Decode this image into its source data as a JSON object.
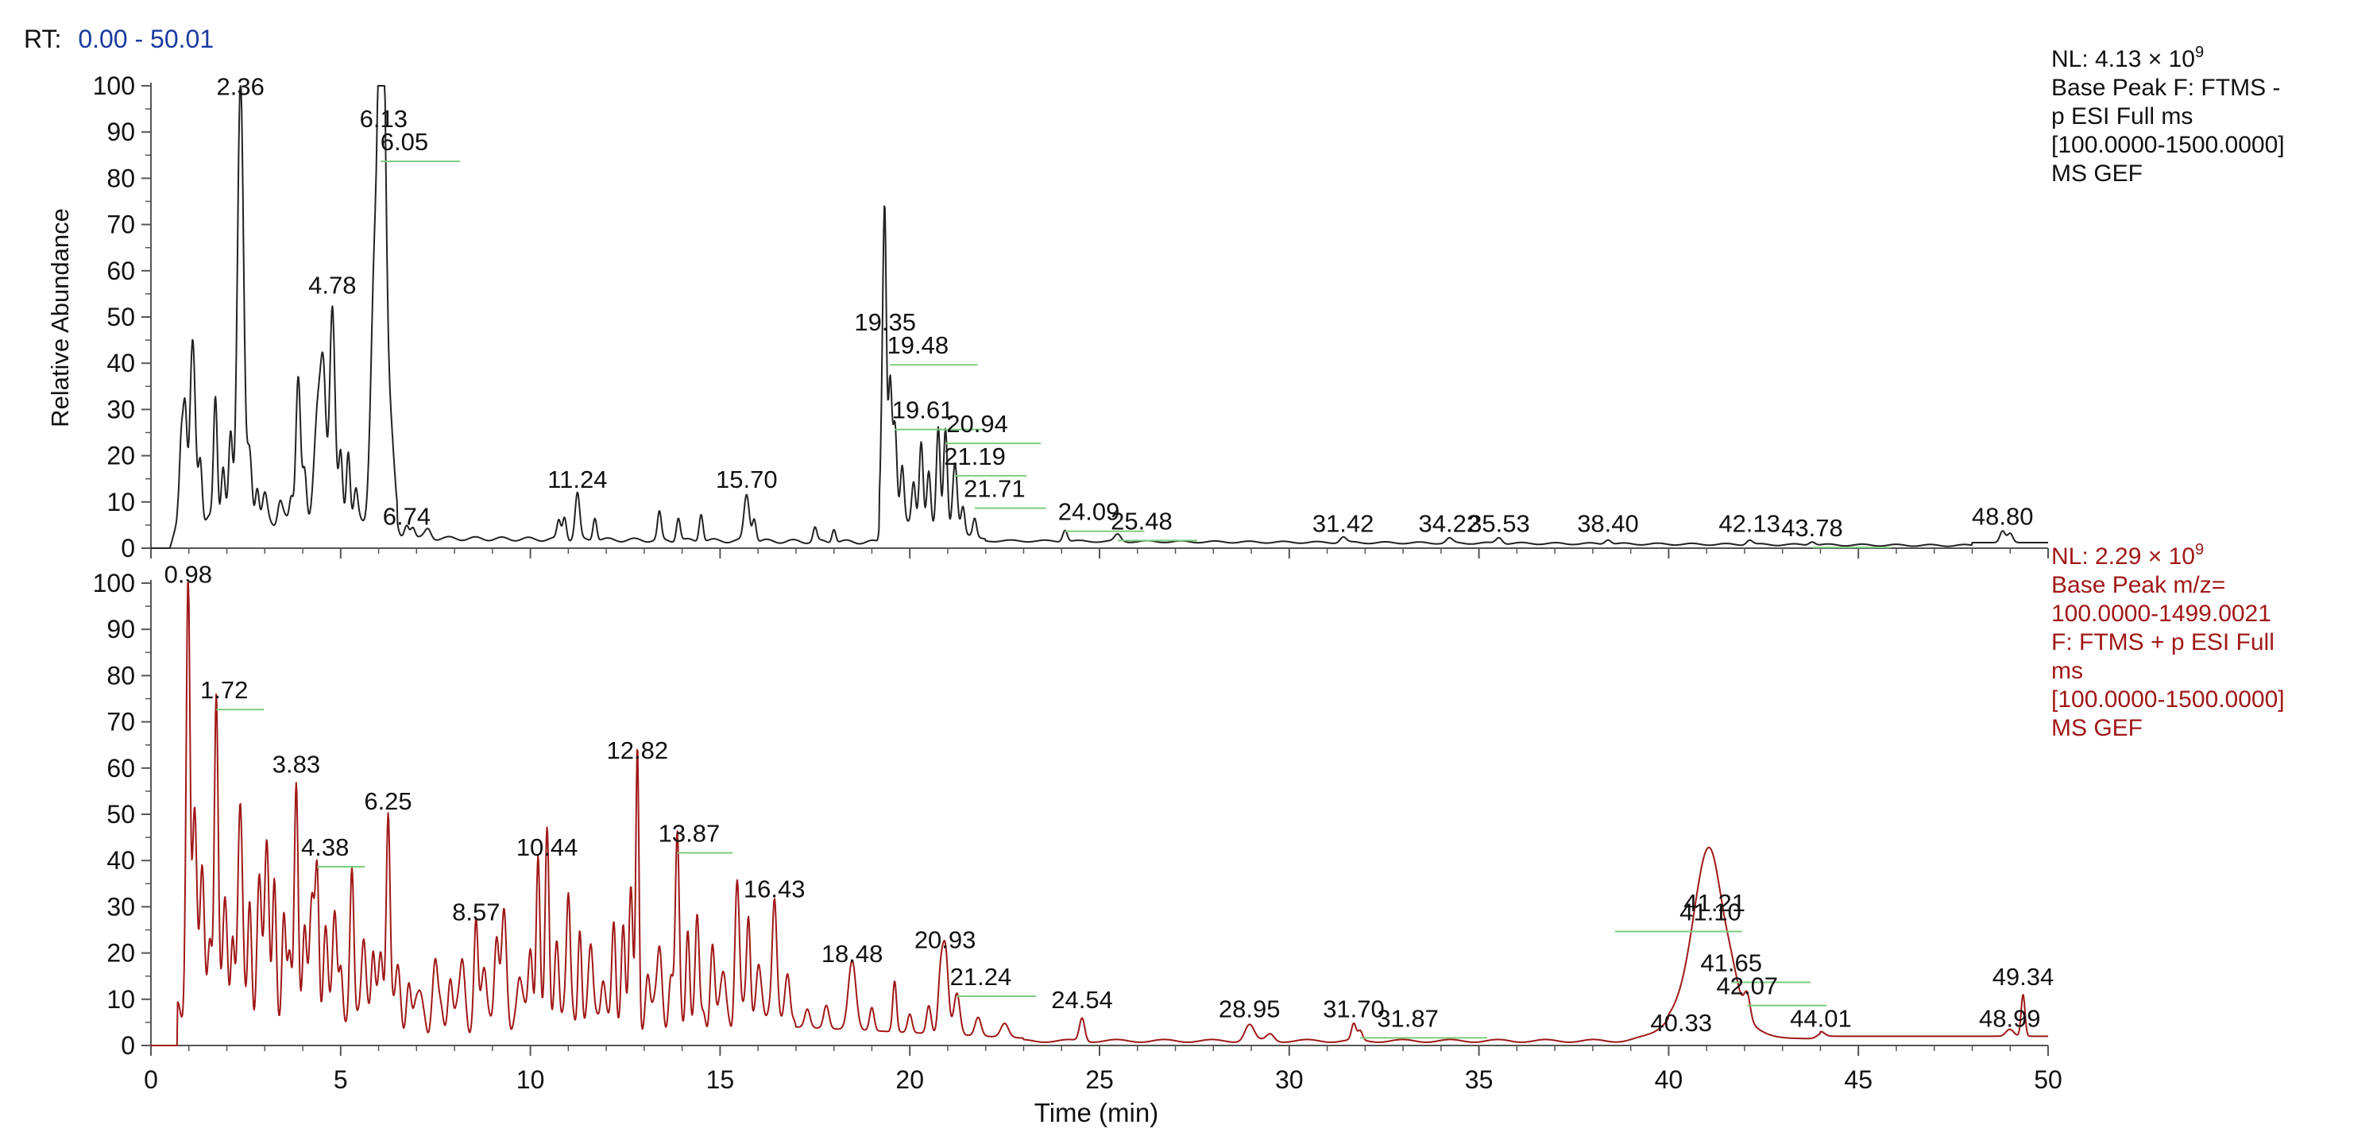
{
  "rt_range": {
    "prefix": "RT:",
    "value": "0.00 - 50.01"
  },
  "colors": {
    "trace_top": "#222222",
    "trace_bottom": "#a01818",
    "marker": "#7ccd7c",
    "rt_value": "#1a3aa0",
    "text": "#111111"
  },
  "chart_data": [
    {
      "type": "line",
      "name": "top-trace",
      "ylabel": "Relative Abundance",
      "xlabel": "",
      "xlim": [
        0,
        50
      ],
      "ylim": [
        0,
        100
      ],
      "yticks": [
        "0",
        "10",
        "20",
        "30",
        "40",
        "50",
        "60",
        "70",
        "80",
        "90",
        "100"
      ],
      "nl_prefix": "NL: 4.13 × 10",
      "nl_exp": "9",
      "info": [
        "Base Peak F: FTMS -",
        "p ESI Full ms",
        "[100.0000-1500.0000]",
        "MS GEF"
      ],
      "peaks": [
        {
          "x": 0.8,
          "y": 18,
          "w": 0.05
        },
        {
          "x": 0.9,
          "y": 24,
          "w": 0.05
        },
        {
          "x": 1.1,
          "y": 38,
          "w": 0.07
        },
        {
          "x": 1.3,
          "y": 14,
          "w": 0.05
        },
        {
          "x": 1.7,
          "y": 27,
          "w": 0.05
        },
        {
          "x": 1.9,
          "y": 12,
          "w": 0.05
        },
        {
          "x": 2.1,
          "y": 18,
          "w": 0.05
        },
        {
          "x": 2.36,
          "y": 96,
          "w": 0.08
        },
        {
          "x": 2.6,
          "y": 14,
          "w": 0.06
        },
        {
          "x": 2.8,
          "y": 8,
          "w": 0.05
        },
        {
          "x": 3.0,
          "y": 5,
          "w": 0.06
        },
        {
          "x": 3.4,
          "y": 4,
          "w": 0.06
        },
        {
          "x": 3.7,
          "y": 6,
          "w": 0.05
        },
        {
          "x": 3.88,
          "y": 31,
          "w": 0.06
        },
        {
          "x": 4.05,
          "y": 10,
          "w": 0.05
        },
        {
          "x": 4.4,
          "y": 24,
          "w": 0.1
        },
        {
          "x": 4.55,
          "y": 26,
          "w": 0.07
        },
        {
          "x": 4.78,
          "y": 47,
          "w": 0.07
        },
        {
          "x": 5.0,
          "y": 14,
          "w": 0.05
        },
        {
          "x": 5.2,
          "y": 16,
          "w": 0.05
        },
        {
          "x": 5.4,
          "y": 6,
          "w": 0.05
        },
        {
          "x": 5.9,
          "y": 55,
          "w": 0.1
        },
        {
          "x": 6.05,
          "y": 70,
          "w": 0.07
        },
        {
          "x": 6.13,
          "y": 76,
          "w": 0.08
        },
        {
          "x": 6.3,
          "y": 20,
          "w": 0.1
        },
        {
          "x": 6.74,
          "y": 3,
          "w": 0.06
        },
        {
          "x": 6.9,
          "y": 2.5,
          "w": 0.06
        },
        {
          "x": 7.3,
          "y": 2,
          "w": 0.08
        },
        {
          "x": 10.75,
          "y": 4,
          "w": 0.05
        },
        {
          "x": 10.9,
          "y": 5,
          "w": 0.05
        },
        {
          "x": 11.24,
          "y": 10,
          "w": 0.06
        },
        {
          "x": 11.7,
          "y": 5,
          "w": 0.05
        },
        {
          "x": 13.4,
          "y": 6,
          "w": 0.05
        },
        {
          "x": 13.9,
          "y": 5,
          "w": 0.05
        },
        {
          "x": 14.5,
          "y": 6,
          "w": 0.05
        },
        {
          "x": 15.7,
          "y": 10,
          "w": 0.07
        },
        {
          "x": 15.9,
          "y": 5,
          "w": 0.05
        },
        {
          "x": 17.5,
          "y": 3,
          "w": 0.05
        },
        {
          "x": 18.0,
          "y": 3,
          "w": 0.05
        },
        {
          "x": 19.3,
          "y": 36,
          "w": 0.05
        },
        {
          "x": 19.35,
          "y": 42,
          "w": 0.04
        },
        {
          "x": 19.48,
          "y": 30,
          "w": 0.05
        },
        {
          "x": 19.61,
          "y": 20,
          "w": 0.05
        },
        {
          "x": 19.8,
          "y": 12,
          "w": 0.05
        },
        {
          "x": 20.1,
          "y": 9,
          "w": 0.05
        },
        {
          "x": 20.3,
          "y": 18,
          "w": 0.05
        },
        {
          "x": 20.5,
          "y": 12,
          "w": 0.05
        },
        {
          "x": 20.75,
          "y": 22,
          "w": 0.05
        },
        {
          "x": 20.94,
          "y": 22,
          "w": 0.05
        },
        {
          "x": 21.19,
          "y": 15,
          "w": 0.06
        },
        {
          "x": 21.4,
          "y": 6,
          "w": 0.05
        },
        {
          "x": 21.71,
          "y": 4,
          "w": 0.05
        },
        {
          "x": 24.09,
          "y": 2.5,
          "w": 0.06
        },
        {
          "x": 25.48,
          "y": 1.5,
          "w": 0.08
        },
        {
          "x": 31.42,
          "y": 1.2,
          "w": 0.08
        },
        {
          "x": 34.22,
          "y": 1,
          "w": 0.08
        },
        {
          "x": 35.53,
          "y": 1.3,
          "w": 0.08
        },
        {
          "x": 38.4,
          "y": 1,
          "w": 0.08
        },
        {
          "x": 42.13,
          "y": 1,
          "w": 0.08
        },
        {
          "x": 43.78,
          "y": 0.8,
          "w": 0.08
        },
        {
          "x": 48.8,
          "y": 2.5,
          "w": 0.07
        },
        {
          "x": 49.0,
          "y": 2,
          "w": 0.07
        }
      ],
      "labels": [
        {
          "text": "2.36",
          "x": 2.36,
          "y": 96
        },
        {
          "text": "6.13",
          "x": 6.13,
          "y": 89
        },
        {
          "text": "6.05",
          "x": 6.05,
          "y": 84,
          "marker": true,
          "dx": 60
        },
        {
          "text": "4.78",
          "x": 4.78,
          "y": 53
        },
        {
          "text": "6.74",
          "x": 6.74,
          "y": 3
        },
        {
          "text": "11.24",
          "x": 11.24,
          "y": 11
        },
        {
          "text": "15.70",
          "x": 15.7,
          "y": 11
        },
        {
          "text": "19.35",
          "x": 19.35,
          "y": 45
        },
        {
          "text": "19.48",
          "x": 19.48,
          "y": 40,
          "marker": true,
          "dx": 70
        },
        {
          "text": "19.61",
          "x": 19.61,
          "y": 26,
          "marker": true,
          "dx": 70
        },
        {
          "text": "20.94",
          "x": 20.94,
          "y": 23,
          "marker": true,
          "dx": 80
        },
        {
          "text": "21.19",
          "x": 21.19,
          "y": 16,
          "marker": true,
          "dx": 50
        },
        {
          "text": "21.71",
          "x": 21.71,
          "y": 9,
          "marker": true,
          "dx": 50
        },
        {
          "text": "24.09",
          "x": 24.09,
          "y": 4,
          "marker": true,
          "dx": 60
        },
        {
          "text": "25.48",
          "x": 25.48,
          "y": 2,
          "marker": true,
          "dx": 60
        },
        {
          "text": "31.42",
          "x": 31.42,
          "y": 1.5
        },
        {
          "text": "34.22",
          "x": 34.22,
          "y": 1.5
        },
        {
          "text": "35.53",
          "x": 35.53,
          "y": 1.5
        },
        {
          "text": "38.40",
          "x": 38.4,
          "y": 1.5
        },
        {
          "text": "42.13",
          "x": 42.13,
          "y": 1.5
        },
        {
          "text": "43.78",
          "x": 43.78,
          "y": 0.5,
          "marker": true,
          "dx": 0
        },
        {
          "text": "48.80",
          "x": 48.8,
          "y": 3
        }
      ]
    },
    {
      "type": "line",
      "name": "bottom-trace",
      "ylabel": "",
      "xlabel": "Time (min)",
      "xlim": [
        0,
        50
      ],
      "ylim": [
        0,
        100
      ],
      "xticks": [
        "0",
        "5",
        "10",
        "15",
        "20",
        "25",
        "30",
        "35",
        "40",
        "45",
        "50"
      ],
      "yticks": [
        "0",
        "10",
        "20",
        "30",
        "40",
        "50",
        "60",
        "70",
        "80",
        "90",
        "100"
      ],
      "nl_prefix": "NL: 2.29 × 10",
      "nl_exp": "9",
      "info": [
        "Base Peak m/z=",
        "100.0000-1499.0021",
        "F: FTMS + p ESI Full",
        "ms",
        "[100.0000-1500.0000]",
        "MS GEF"
      ],
      "peaks": [
        {
          "x": 0.98,
          "y": 98,
          "w": 0.05
        },
        {
          "x": 1.15,
          "y": 44,
          "w": 0.06
        },
        {
          "x": 1.35,
          "y": 30,
          "w": 0.06
        },
        {
          "x": 1.55,
          "y": 18,
          "w": 0.06
        },
        {
          "x": 1.72,
          "y": 70,
          "w": 0.05
        },
        {
          "x": 1.95,
          "y": 25,
          "w": 0.06
        },
        {
          "x": 2.15,
          "y": 20,
          "w": 0.05
        },
        {
          "x": 2.35,
          "y": 46,
          "w": 0.06
        },
        {
          "x": 2.6,
          "y": 26,
          "w": 0.05
        },
        {
          "x": 2.85,
          "y": 30,
          "w": 0.06
        },
        {
          "x": 3.05,
          "y": 36,
          "w": 0.06
        },
        {
          "x": 3.25,
          "y": 32,
          "w": 0.05
        },
        {
          "x": 3.5,
          "y": 20,
          "w": 0.05
        },
        {
          "x": 3.65,
          "y": 14,
          "w": 0.05
        },
        {
          "x": 3.83,
          "y": 54,
          "w": 0.05
        },
        {
          "x": 4.05,
          "y": 20,
          "w": 0.05
        },
        {
          "x": 4.25,
          "y": 26,
          "w": 0.06
        },
        {
          "x": 4.38,
          "y": 32,
          "w": 0.05
        },
        {
          "x": 4.6,
          "y": 18,
          "w": 0.06
        },
        {
          "x": 4.85,
          "y": 22,
          "w": 0.06
        },
        {
          "x": 5.0,
          "y": 12,
          "w": 0.05
        },
        {
          "x": 5.3,
          "y": 30,
          "w": 0.05
        },
        {
          "x": 5.6,
          "y": 20,
          "w": 0.06
        },
        {
          "x": 5.85,
          "y": 12,
          "w": 0.05
        },
        {
          "x": 6.05,
          "y": 16,
          "w": 0.06
        },
        {
          "x": 6.25,
          "y": 46,
          "w": 0.05
        },
        {
          "x": 6.5,
          "y": 10,
          "w": 0.06
        },
        {
          "x": 6.8,
          "y": 8,
          "w": 0.06
        },
        {
          "x": 7.1,
          "y": 6,
          "w": 0.06
        },
        {
          "x": 7.5,
          "y": 12,
          "w": 0.06
        },
        {
          "x": 7.9,
          "y": 10,
          "w": 0.06
        },
        {
          "x": 8.2,
          "y": 12,
          "w": 0.06
        },
        {
          "x": 8.57,
          "y": 22,
          "w": 0.05
        },
        {
          "x": 8.8,
          "y": 10,
          "w": 0.06
        },
        {
          "x": 9.1,
          "y": 18,
          "w": 0.06
        },
        {
          "x": 9.3,
          "y": 22,
          "w": 0.06
        },
        {
          "x": 9.7,
          "y": 10,
          "w": 0.06
        },
        {
          "x": 10.0,
          "y": 14,
          "w": 0.06
        },
        {
          "x": 10.2,
          "y": 36,
          "w": 0.05
        },
        {
          "x": 10.44,
          "y": 38,
          "w": 0.05
        },
        {
          "x": 10.7,
          "y": 18,
          "w": 0.06
        },
        {
          "x": 11.0,
          "y": 26,
          "w": 0.05
        },
        {
          "x": 11.3,
          "y": 20,
          "w": 0.05
        },
        {
          "x": 11.6,
          "y": 14,
          "w": 0.06
        },
        {
          "x": 11.9,
          "y": 10,
          "w": 0.06
        },
        {
          "x": 12.2,
          "y": 18,
          "w": 0.05
        },
        {
          "x": 12.45,
          "y": 22,
          "w": 0.05
        },
        {
          "x": 12.65,
          "y": 26,
          "w": 0.05
        },
        {
          "x": 12.82,
          "y": 57,
          "w": 0.04
        },
        {
          "x": 13.1,
          "y": 10,
          "w": 0.06
        },
        {
          "x": 13.4,
          "y": 16,
          "w": 0.06
        },
        {
          "x": 13.7,
          "y": 8,
          "w": 0.06
        },
        {
          "x": 13.87,
          "y": 38,
          "w": 0.05
        },
        {
          "x": 14.15,
          "y": 20,
          "w": 0.05
        },
        {
          "x": 14.4,
          "y": 20,
          "w": 0.05
        },
        {
          "x": 14.8,
          "y": 16,
          "w": 0.06
        },
        {
          "x": 15.1,
          "y": 10,
          "w": 0.06
        },
        {
          "x": 15.45,
          "y": 28,
          "w": 0.06
        },
        {
          "x": 15.75,
          "y": 24,
          "w": 0.05
        },
        {
          "x": 16.0,
          "y": 12,
          "w": 0.06
        },
        {
          "x": 16.43,
          "y": 29,
          "w": 0.06
        },
        {
          "x": 16.8,
          "y": 8,
          "w": 0.06
        },
        {
          "x": 17.3,
          "y": 4,
          "w": 0.07
        },
        {
          "x": 17.8,
          "y": 5,
          "w": 0.07
        },
        {
          "x": 18.48,
          "y": 15,
          "w": 0.1
        },
        {
          "x": 19.0,
          "y": 5,
          "w": 0.06
        },
        {
          "x": 19.6,
          "y": 11,
          "w": 0.05
        },
        {
          "x": 20.0,
          "y": 4,
          "w": 0.06
        },
        {
          "x": 20.5,
          "y": 6,
          "w": 0.06
        },
        {
          "x": 20.8,
          "y": 10,
          "w": 0.06
        },
        {
          "x": 20.93,
          "y": 19,
          "w": 0.08
        },
        {
          "x": 21.24,
          "y": 9,
          "w": 0.08
        },
        {
          "x": 21.8,
          "y": 4,
          "w": 0.08
        },
        {
          "x": 22.5,
          "y": 3,
          "w": 0.1
        },
        {
          "x": 24.54,
          "y": 5,
          "w": 0.07
        },
        {
          "x": 28.95,
          "y": 3.5,
          "w": 0.12
        },
        {
          "x": 29.5,
          "y": 1.5,
          "w": 0.1
        },
        {
          "x": 31.7,
          "y": 3.5,
          "w": 0.06
        },
        {
          "x": 31.87,
          "y": 2,
          "w": 0.06
        },
        {
          "x": 40.9,
          "y": 18,
          "w": 0.3
        },
        {
          "x": 41.21,
          "y": 14,
          "w": 0.25
        },
        {
          "x": 41.65,
          "y": 6,
          "w": 0.2
        },
        {
          "x": 42.07,
          "y": 5,
          "w": 0.08
        },
        {
          "x": 44.01,
          "y": 1,
          "w": 0.1
        },
        {
          "x": 48.99,
          "y": 1.5,
          "w": 0.1
        },
        {
          "x": 49.34,
          "y": 9,
          "w": 0.05
        }
      ],
      "humps": [
        {
          "x": 41.0,
          "y": 14,
          "w": 0.7
        }
      ],
      "labels": [
        {
          "text": "0.98",
          "x": 0.98,
          "y": 98
        },
        {
          "text": "1.72",
          "x": 1.72,
          "y": 73,
          "marker": true,
          "dx": 20
        },
        {
          "text": "3.83",
          "x": 3.83,
          "y": 57
        },
        {
          "text": "4.38",
          "x": 4.38,
          "y": 39,
          "marker": true,
          "dx": 20
        },
        {
          "text": "6.25",
          "x": 6.25,
          "y": 49
        },
        {
          "text": "8.57",
          "x": 8.57,
          "y": 25
        },
        {
          "text": "10.44",
          "x": 10.44,
          "y": 39
        },
        {
          "text": "12.82",
          "x": 12.82,
          "y": 60
        },
        {
          "text": "13.87",
          "x": 13.87,
          "y": 42,
          "marker": true,
          "dx": 30
        },
        {
          "text": "16.43",
          "x": 16.43,
          "y": 30
        },
        {
          "text": "18.48",
          "x": 18.48,
          "y": 16
        },
        {
          "text": "20.93",
          "x": 20.93,
          "y": 19
        },
        {
          "text": "21.24",
          "x": 21.24,
          "y": 11,
          "marker": true,
          "dx": 60
        },
        {
          "text": "24.54",
          "x": 24.54,
          "y": 6
        },
        {
          "text": "28.95",
          "x": 28.95,
          "y": 4
        },
        {
          "text": "31.70",
          "x": 31.7,
          "y": 4
        },
        {
          "text": "31.87",
          "x": 31.87,
          "y": 2,
          "marker": true,
          "dx": 120
        },
        {
          "text": "40.33",
          "x": 40.33,
          "y": 1
        },
        {
          "text": "41.10",
          "x": 41.1,
          "y": 25,
          "marker": true,
          "dx": -120
        },
        {
          "text": "41.21",
          "x": 41.21,
          "y": 27
        },
        {
          "text": "41.65",
          "x": 41.65,
          "y": 14,
          "marker": true,
          "dx": 0
        },
        {
          "text": "42.07",
          "x": 42.07,
          "y": 9,
          "marker": true,
          "dx": 0
        },
        {
          "text": "44.01",
          "x": 44.01,
          "y": 2
        },
        {
          "text": "48.99",
          "x": 48.99,
          "y": 2
        },
        {
          "text": "49.34",
          "x": 49.34,
          "y": 11
        }
      ]
    }
  ]
}
